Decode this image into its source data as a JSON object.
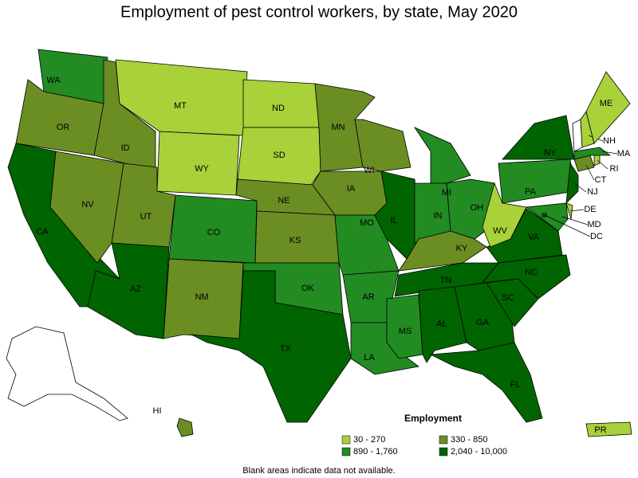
{
  "title": "Employment of pest control workers, by state, May 2020",
  "legend": {
    "title": "Employment",
    "classes": [
      {
        "label": "30 - 270",
        "color": "#a8d13a"
      },
      {
        "label": "330 - 850",
        "color": "#6b8e23"
      },
      {
        "label": "890 - 1,760",
        "color": "#228b22"
      },
      {
        "label": "2,040 - 10,000",
        "color": "#006400"
      }
    ]
  },
  "states": [
    {
      "label": "WA",
      "color": "#228b22"
    },
    {
      "label": "OR",
      "color": "#6b8e23"
    },
    {
      "label": "CA",
      "color": "#006400"
    },
    {
      "label": "NV",
      "color": "#6b8e23"
    },
    {
      "label": "ID",
      "color": "#6b8e23"
    },
    {
      "label": "MT",
      "color": "#a8d13a"
    },
    {
      "label": "WY",
      "color": "#a8d13a"
    },
    {
      "label": "UT",
      "color": "#6b8e23"
    },
    {
      "label": "AZ",
      "color": "#006400"
    },
    {
      "label": "CO",
      "color": "#228b22"
    },
    {
      "label": "NM",
      "color": "#6b8e23"
    },
    {
      "label": "ND",
      "color": "#a8d13a"
    },
    {
      "label": "SD",
      "color": "#a8d13a"
    },
    {
      "label": "NE",
      "color": "#6b8e23"
    },
    {
      "label": "KS",
      "color": "#6b8e23"
    },
    {
      "label": "OK",
      "color": "#228b22"
    },
    {
      "label": "TX",
      "color": "#006400"
    },
    {
      "label": "MN",
      "color": "#6b8e23"
    },
    {
      "label": "IA",
      "color": "#6b8e23"
    },
    {
      "label": "MO",
      "color": "#228b22"
    },
    {
      "label": "AR",
      "color": "#228b22"
    },
    {
      "label": "LA",
      "color": "#228b22"
    },
    {
      "label": "WI",
      "color": "#6b8e23"
    },
    {
      "label": "IL",
      "color": "#006400"
    },
    {
      "label": "MI",
      "color": "#228b22"
    },
    {
      "label": "IN",
      "color": "#228b22"
    },
    {
      "label": "OH",
      "color": "#228b22"
    },
    {
      "label": "KY",
      "color": "#6b8e23"
    },
    {
      "label": "TN",
      "color": "#006400"
    },
    {
      "label": "MS",
      "color": "#228b22"
    },
    {
      "label": "AL",
      "color": "#006400"
    },
    {
      "label": "GA",
      "color": "#006400"
    },
    {
      "label": "FL",
      "color": "#006400"
    },
    {
      "label": "SC",
      "color": "#006400"
    },
    {
      "label": "NC",
      "color": "#006400"
    },
    {
      "label": "VA",
      "color": "#006400"
    },
    {
      "label": "WV",
      "color": "#a8d13a"
    },
    {
      "label": "PA",
      "color": "#228b22"
    },
    {
      "label": "NY",
      "color": "#006400"
    },
    {
      "label": "NJ",
      "color": "#006400"
    },
    {
      "label": "DE",
      "color": "#a8d13a"
    },
    {
      "label": "MD",
      "color": "#228b22"
    },
    {
      "label": "DC",
      "color": "#006400"
    },
    {
      "label": "CT",
      "color": "#6b8e23"
    },
    {
      "label": "RI",
      "color": "#a8d13a"
    },
    {
      "label": "MA",
      "color": "#228b22"
    },
    {
      "label": "NH",
      "color": "#a8d13a"
    },
    {
      "label": "ME",
      "color": "#a8d13a"
    },
    {
      "label": "HI",
      "color": "#6b8e23"
    },
    {
      "label": "PR",
      "color": "#a8d13a"
    }
  ],
  "footnote": "Blank areas indicate data not available."
}
